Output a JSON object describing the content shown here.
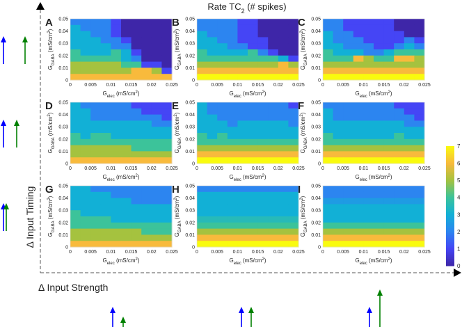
{
  "chart_data": {
    "type": "heatmap",
    "title": {
      "main": "Rate TC",
      "sub": "2",
      "rest": " (# spikes)"
    },
    "xlabel": {
      "main": "G",
      "sub": "elec",
      "unit": " (mS/cm",
      "sup": "2",
      "close": ")"
    },
    "ylabel": {
      "main": "G",
      "sub": "GABA",
      "unit": " (mS/cm",
      "sup": "2",
      "close": ")"
    },
    "x_ticks": [
      "0",
      "0.005",
      "0.01",
      "0.015",
      "0.02",
      "0.025"
    ],
    "y_ticks": [
      "0",
      "0.01",
      "0.02",
      "0.03",
      "0.04",
      "0.05"
    ],
    "xlim": [
      0,
      0.025
    ],
    "ylim": [
      0,
      0.05
    ],
    "colorbar": {
      "min": 0,
      "max": 7,
      "ticks": [
        "0",
        "1",
        "2",
        "3",
        "4",
        "5",
        "6",
        "7"
      ]
    },
    "colormap_stops": [
      "#3e26a8",
      "#4545f5",
      "#2c85f0",
      "#12b0d6",
      "#3cc39a",
      "#a5c23f",
      "#f8ba3c",
      "#f9fb0e"
    ],
    "panels": [
      {
        "label": "A",
        "values": [
          [
            2,
            2,
            2,
            2,
            1,
            0,
            0,
            0,
            0,
            0
          ],
          [
            3,
            2,
            2,
            2,
            1,
            0,
            0,
            0,
            0,
            0
          ],
          [
            3,
            3,
            2,
            2,
            1,
            0,
            0,
            0,
            0,
            0
          ],
          [
            3,
            3,
            3,
            2,
            2,
            1,
            0,
            0,
            0,
            0
          ],
          [
            3,
            3,
            3,
            3,
            2,
            2,
            0,
            0,
            0,
            0
          ],
          [
            4,
            3,
            3,
            3,
            4,
            3,
            1,
            0,
            0,
            0
          ],
          [
            4,
            4,
            4,
            4,
            4,
            3,
            2,
            0,
            0,
            0
          ],
          [
            5,
            5,
            5,
            5,
            5,
            4,
            4,
            1,
            1,
            0
          ],
          [
            5,
            5,
            5,
            5,
            5,
            5,
            6,
            6,
            5,
            1
          ],
          [
            6,
            6,
            6,
            6,
            6,
            6,
            6,
            6,
            6,
            6
          ]
        ]
      },
      {
        "label": "B",
        "values": [
          [
            2,
            2,
            2,
            2,
            1,
            1,
            0,
            0,
            0,
            0
          ],
          [
            2,
            2,
            2,
            2,
            1,
            1,
            0,
            0,
            0,
            0
          ],
          [
            3,
            2,
            2,
            2,
            1,
            1,
            0,
            0,
            0,
            0
          ],
          [
            3,
            3,
            2,
            2,
            1,
            1,
            1,
            0,
            0,
            0
          ],
          [
            3,
            3,
            3,
            2,
            2,
            1,
            1,
            0,
            0,
            0
          ],
          [
            4,
            3,
            3,
            3,
            3,
            4,
            2,
            1,
            0,
            0
          ],
          [
            4,
            4,
            4,
            4,
            4,
            4,
            4,
            4,
            3,
            1
          ],
          [
            5,
            5,
            5,
            5,
            5,
            5,
            5,
            5,
            6,
            5
          ],
          [
            6,
            6,
            6,
            6,
            6,
            6,
            6,
            6,
            6,
            6
          ],
          [
            7,
            7,
            7,
            7,
            7,
            7,
            7,
            7,
            7,
            7
          ]
        ]
      },
      {
        "label": "C",
        "values": [
          [
            2,
            2,
            1,
            1,
            1,
            1,
            1,
            0,
            0,
            0
          ],
          [
            2,
            2,
            1,
            1,
            1,
            1,
            1,
            0,
            0,
            0
          ],
          [
            3,
            2,
            2,
            1,
            1,
            1,
            1,
            1,
            0,
            0
          ],
          [
            3,
            2,
            2,
            2,
            1,
            1,
            1,
            1,
            2,
            1
          ],
          [
            3,
            3,
            2,
            2,
            2,
            1,
            1,
            2,
            3,
            2
          ],
          [
            4,
            3,
            3,
            3,
            2,
            2,
            3,
            4,
            4,
            4
          ],
          [
            4,
            4,
            4,
            6,
            5,
            4,
            4,
            6,
            6,
            5
          ],
          [
            5,
            5,
            5,
            5,
            5,
            5,
            5,
            5,
            5,
            5
          ],
          [
            6,
            6,
            6,
            6,
            6,
            6,
            6,
            6,
            6,
            6
          ],
          [
            7,
            7,
            7,
            7,
            7,
            7,
            7,
            7,
            7,
            7
          ]
        ]
      },
      {
        "label": "D",
        "values": [
          [
            3,
            2,
            2,
            2,
            2,
            2,
            1,
            1,
            1,
            1
          ],
          [
            3,
            3,
            2,
            2,
            2,
            2,
            2,
            1,
            1,
            1
          ],
          [
            3,
            3,
            2,
            2,
            2,
            2,
            2,
            2,
            2,
            1
          ],
          [
            3,
            3,
            3,
            3,
            3,
            3,
            3,
            3,
            2,
            2
          ],
          [
            3,
            3,
            3,
            3,
            3,
            3,
            3,
            3,
            3,
            3
          ],
          [
            4,
            3,
            4,
            4,
            3,
            3,
            3,
            3,
            3,
            3
          ],
          [
            4,
            4,
            4,
            4,
            4,
            4,
            4,
            4,
            4,
            4
          ],
          [
            5,
            5,
            5,
            5,
            5,
            5,
            4,
            4,
            4,
            4
          ],
          [
            5,
            5,
            5,
            5,
            5,
            5,
            5,
            5,
            5,
            5
          ],
          [
            6,
            6,
            6,
            6,
            6,
            6,
            6,
            6,
            6,
            6
          ]
        ]
      },
      {
        "label": "E",
        "values": [
          [
            3,
            2,
            2,
            2,
            2,
            2,
            2,
            2,
            2,
            1
          ],
          [
            3,
            2,
            2,
            2,
            2,
            2,
            2,
            2,
            2,
            2
          ],
          [
            3,
            3,
            2,
            2,
            2,
            2,
            2,
            2,
            2,
            2
          ],
          [
            3,
            3,
            3,
            2,
            3,
            3,
            3,
            3,
            3,
            2
          ],
          [
            3,
            3,
            3,
            3,
            3,
            3,
            3,
            3,
            3,
            3
          ],
          [
            4,
            3,
            4,
            3,
            3,
            3,
            3,
            3,
            3,
            3
          ],
          [
            4,
            4,
            4,
            4,
            4,
            4,
            4,
            4,
            4,
            4
          ],
          [
            5,
            5,
            5,
            5,
            5,
            5,
            5,
            5,
            5,
            5
          ],
          [
            6,
            6,
            6,
            6,
            6,
            6,
            6,
            6,
            6,
            6
          ],
          [
            7,
            7,
            7,
            7,
            7,
            7,
            7,
            7,
            7,
            7
          ]
        ]
      },
      {
        "label": "F",
        "values": [
          [
            2,
            2,
            2,
            2,
            2,
            2,
            2,
            1,
            1,
            1
          ],
          [
            3,
            2,
            2,
            2,
            2,
            2,
            2,
            2,
            1,
            1
          ],
          [
            3,
            2,
            2,
            2,
            2,
            2,
            2,
            2,
            2,
            1
          ],
          [
            3,
            3,
            3,
            3,
            3,
            3,
            3,
            3,
            2,
            2
          ],
          [
            3,
            3,
            3,
            3,
            3,
            3,
            3,
            3,
            3,
            3
          ],
          [
            4,
            3,
            3,
            3,
            3,
            3,
            3,
            4,
            3,
            3
          ],
          [
            4,
            4,
            4,
            4,
            4,
            4,
            4,
            4,
            4,
            4
          ],
          [
            5,
            5,
            5,
            5,
            5,
            5,
            5,
            5,
            5,
            5
          ],
          [
            6,
            6,
            6,
            6,
            6,
            6,
            6,
            6,
            6,
            6
          ],
          [
            7,
            7,
            7,
            7,
            7,
            7,
            7,
            7,
            7,
            7
          ]
        ]
      },
      {
        "label": "G",
        "values": [
          [
            3,
            3,
            2,
            2,
            2,
            2,
            2,
            2,
            2,
            2
          ],
          [
            3,
            3,
            3,
            3,
            2,
            2,
            2,
            2,
            2,
            2
          ],
          [
            3,
            3,
            3,
            3,
            3,
            3,
            2,
            2,
            2,
            2
          ],
          [
            3,
            3,
            3,
            3,
            3,
            3,
            3,
            3,
            3,
            3
          ],
          [
            4,
            3,
            3,
            3,
            3,
            3,
            3,
            3,
            3,
            3
          ],
          [
            4,
            4,
            4,
            4,
            3,
            3,
            3,
            3,
            3,
            3
          ],
          [
            4,
            4,
            4,
            4,
            4,
            4,
            4,
            4,
            4,
            4
          ],
          [
            5,
            5,
            5,
            5,
            5,
            5,
            5,
            4,
            4,
            4
          ],
          [
            5,
            5,
            5,
            5,
            5,
            5,
            5,
            5,
            5,
            5
          ],
          [
            6,
            6,
            6,
            6,
            6,
            6,
            6,
            6,
            6,
            6
          ]
        ]
      },
      {
        "label": "H",
        "values": [
          [
            2,
            2,
            2,
            2,
            2,
            2,
            2,
            2,
            2,
            2
          ],
          [
            3,
            3,
            3,
            3,
            3,
            3,
            3,
            3,
            3,
            3
          ],
          [
            3,
            3,
            3,
            3,
            3,
            3,
            3,
            3,
            3,
            3
          ],
          [
            3,
            3,
            3,
            3,
            3,
            3,
            3,
            3,
            3,
            3
          ],
          [
            3,
            3,
            3,
            3,
            3,
            3,
            3,
            3,
            3,
            3
          ],
          [
            3.5,
            3.5,
            3.5,
            3.5,
            3.5,
            3.5,
            3.5,
            3.5,
            3.5,
            3.5
          ],
          [
            4,
            4,
            4,
            4,
            4,
            4,
            4,
            4,
            4,
            4
          ],
          [
            5,
            5,
            5,
            5,
            5,
            5,
            5,
            5,
            5,
            5
          ],
          [
            6,
            6,
            6,
            6,
            6,
            6,
            6,
            6,
            6,
            6
          ],
          [
            7,
            7,
            7,
            7,
            7,
            7,
            7,
            7,
            7,
            7
          ]
        ]
      },
      {
        "label": "I",
        "values": [
          [
            2,
            2,
            2,
            2,
            2,
            2,
            2,
            2,
            2,
            2
          ],
          [
            2,
            2,
            2,
            2,
            2,
            2,
            2,
            2,
            2,
            2
          ],
          [
            2.5,
            2.5,
            2.5,
            2.5,
            2.5,
            2.5,
            2.5,
            2.5,
            2.5,
            2.5
          ],
          [
            3,
            3,
            3,
            3,
            3,
            3,
            3,
            3,
            3,
            3
          ],
          [
            3,
            3,
            3,
            3,
            3,
            3,
            3,
            3,
            3,
            3
          ],
          [
            3,
            3,
            3,
            3,
            3,
            3,
            3,
            3,
            3,
            3
          ],
          [
            4,
            4,
            4,
            4,
            4,
            4,
            4,
            4,
            4,
            4
          ],
          [
            5,
            5,
            5,
            5,
            5,
            5,
            5,
            5,
            5,
            5
          ],
          [
            6,
            6,
            6,
            6,
            6,
            6,
            6,
            6,
            6,
            6
          ],
          [
            7,
            7,
            7,
            7,
            7,
            7,
            7,
            7,
            7,
            7
          ]
        ]
      }
    ]
  },
  "axes": {
    "timing_label": "Δ Input Timing",
    "strength_label": "Δ Input Strength"
  },
  "colors": {
    "blue_arrow": "#0000ff",
    "green_arrow": "#008000",
    "axis": "#555555"
  }
}
